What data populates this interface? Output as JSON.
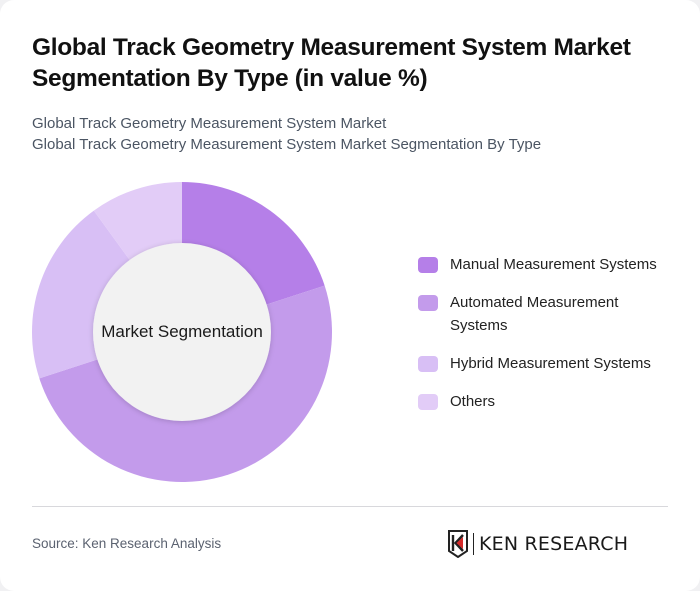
{
  "header": {
    "title": "Global Track Geometry Measurement System Market Segmentation By Type (in value %)",
    "subtitle_line1": "Global Track Geometry Measurement System Market",
    "subtitle_line2": "Global Track Geometry Measurement System Market Segmentation By Type"
  },
  "chart": {
    "center_label": "Market Segmentation"
  },
  "legend": [
    {
      "label": "Manual Measurement Systems",
      "color": "#B57FE8"
    },
    {
      "label": "Automated Measurement Systems",
      "color": "#C39BEB"
    },
    {
      "label": "Hybrid Measurement Systems",
      "color": "#D8BFF5"
    },
    {
      "label": "Others",
      "color": "#E2CCF7"
    }
  ],
  "footer": {
    "source": "Source: Ken Research Analysis",
    "logo_text": "KEN RESEARCH"
  },
  "chart_data": {
    "type": "pie",
    "variant": "donut",
    "title": "Global Track Geometry Measurement System Market Segmentation By Type (in value %)",
    "center_label": "Market Segmentation",
    "categories": [
      "Manual Measurement Systems",
      "Automated Measurement Systems",
      "Hybrid Measurement Systems",
      "Others"
    ],
    "values": [
      20,
      50,
      20,
      10
    ],
    "colors": [
      "#B57FE8",
      "#C39BEB",
      "#D8BFF5",
      "#E2CCF7"
    ],
    "unit": "%",
    "legend_position": "right",
    "start_angle": "12 o'clock, clockwise"
  }
}
